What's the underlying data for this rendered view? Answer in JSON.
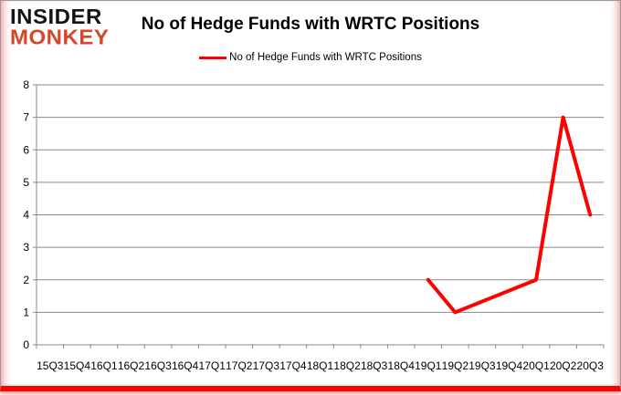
{
  "header": {
    "logo": {
      "line1": "INSIDER",
      "line2": "MONKEY",
      "brand_color": "#d4472a"
    },
    "title": "No of Hedge Funds with WRTC Positions",
    "legend": {
      "label": "No of Hedge Funds with WRTC Positions",
      "line_color": "#ff0000"
    }
  },
  "chart_data": {
    "type": "line",
    "title": "No of Hedge Funds with WRTC Positions",
    "categories": [
      "15Q3",
      "15Q4",
      "16Q1",
      "16Q2",
      "16Q3",
      "16Q4",
      "17Q1",
      "17Q2",
      "17Q3",
      "17Q4",
      "18Q1",
      "18Q2",
      "18Q3",
      "18Q4",
      "19Q1",
      "19Q2",
      "19Q3",
      "19Q4",
      "20Q1",
      "20Q2",
      "20Q3"
    ],
    "series": [
      {
        "name": "No of Hedge Funds with WRTC Positions",
        "color": "#ff0000",
        "values": [
          null,
          null,
          null,
          null,
          null,
          null,
          null,
          null,
          null,
          null,
          null,
          null,
          null,
          null,
          2,
          1,
          null,
          null,
          2,
          7,
          4
        ]
      }
    ],
    "ylim": [
      0,
      8
    ],
    "yticks": [
      0,
      1,
      2,
      3,
      4,
      5,
      6,
      7,
      8
    ],
    "grid": true,
    "legend_position": "top-center",
    "line_width": 4,
    "gridline_color": "#898989",
    "axis_color": "#898989",
    "label_color": "#000000",
    "xlabel": "",
    "ylabel": ""
  }
}
